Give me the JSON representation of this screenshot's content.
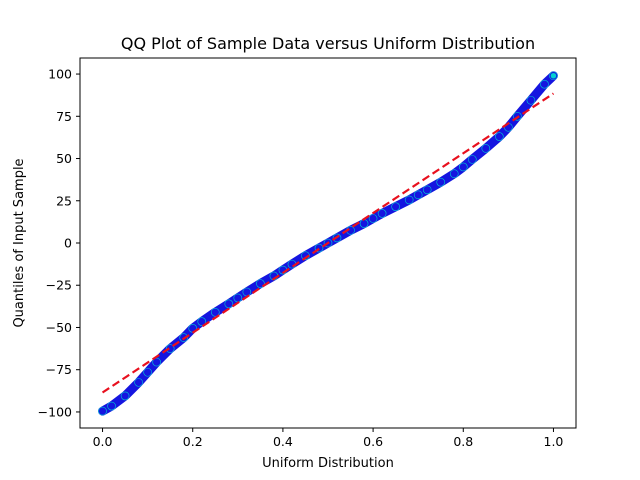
{
  "chart_data": {
    "type": "scatter",
    "title": "QQ Plot of Sample Data versus Uniform Distribution",
    "xlabel": "Uniform Distribution",
    "ylabel": "Quantiles of Input Sample",
    "xlim": [
      -0.05,
      1.05
    ],
    "ylim": [
      -109.5,
      109.5
    ],
    "xticks": [
      0.0,
      0.2,
      0.4,
      0.6,
      0.8,
      1.0
    ],
    "xtick_labels": [
      "0.0",
      "0.2",
      "0.4",
      "0.6",
      "0.8",
      "1.0"
    ],
    "yticks": [
      -100,
      -75,
      -50,
      -25,
      0,
      25,
      50,
      75,
      100
    ],
    "ytick_labels": [
      "−100",
      "−75",
      "−50",
      "−25",
      "0",
      "25",
      "50",
      "75",
      "100"
    ],
    "grid": false,
    "legend": "none",
    "series": [
      {
        "kind": "points",
        "marker_face_color": "#1515e0",
        "marker_edge_color": "#00d0d0",
        "points": [
          [
            0.0,
            -99.5
          ],
          [
            0.02,
            -96.5
          ],
          [
            0.05,
            -90.5
          ],
          [
            0.08,
            -82.5
          ],
          [
            0.1,
            -76.5
          ],
          [
            0.12,
            -70.5
          ],
          [
            0.15,
            -62.5
          ],
          [
            0.18,
            -56.0
          ],
          [
            0.2,
            -50.5
          ],
          [
            0.22,
            -46.5
          ],
          [
            0.25,
            -41.0
          ],
          [
            0.28,
            -36.0
          ],
          [
            0.3,
            -32.5
          ],
          [
            0.32,
            -29.0
          ],
          [
            0.35,
            -24.0
          ],
          [
            0.38,
            -19.5
          ],
          [
            0.4,
            -16.0
          ],
          [
            0.42,
            -12.5
          ],
          [
            0.45,
            -7.5
          ],
          [
            0.48,
            -3.0
          ],
          [
            0.5,
            0.0
          ],
          [
            0.52,
            3.0
          ],
          [
            0.55,
            7.5
          ],
          [
            0.58,
            11.5
          ],
          [
            0.6,
            14.5
          ],
          [
            0.62,
            17.5
          ],
          [
            0.65,
            21.5
          ],
          [
            0.68,
            25.5
          ],
          [
            0.7,
            28.5
          ],
          [
            0.72,
            31.5
          ],
          [
            0.75,
            36.0
          ],
          [
            0.78,
            41.0
          ],
          [
            0.8,
            45.0
          ],
          [
            0.82,
            49.5
          ],
          [
            0.85,
            56.0
          ],
          [
            0.88,
            63.0
          ],
          [
            0.9,
            68.5
          ],
          [
            0.92,
            75.0
          ],
          [
            0.95,
            84.5
          ],
          [
            0.98,
            94.0
          ],
          [
            1.0,
            99.0
          ]
        ]
      },
      {
        "kind": "fit-line",
        "style": "dashed",
        "color": "#e8101e",
        "points": [
          [
            0.0,
            -88.5
          ],
          [
            1.0,
            88.5
          ]
        ]
      }
    ]
  }
}
